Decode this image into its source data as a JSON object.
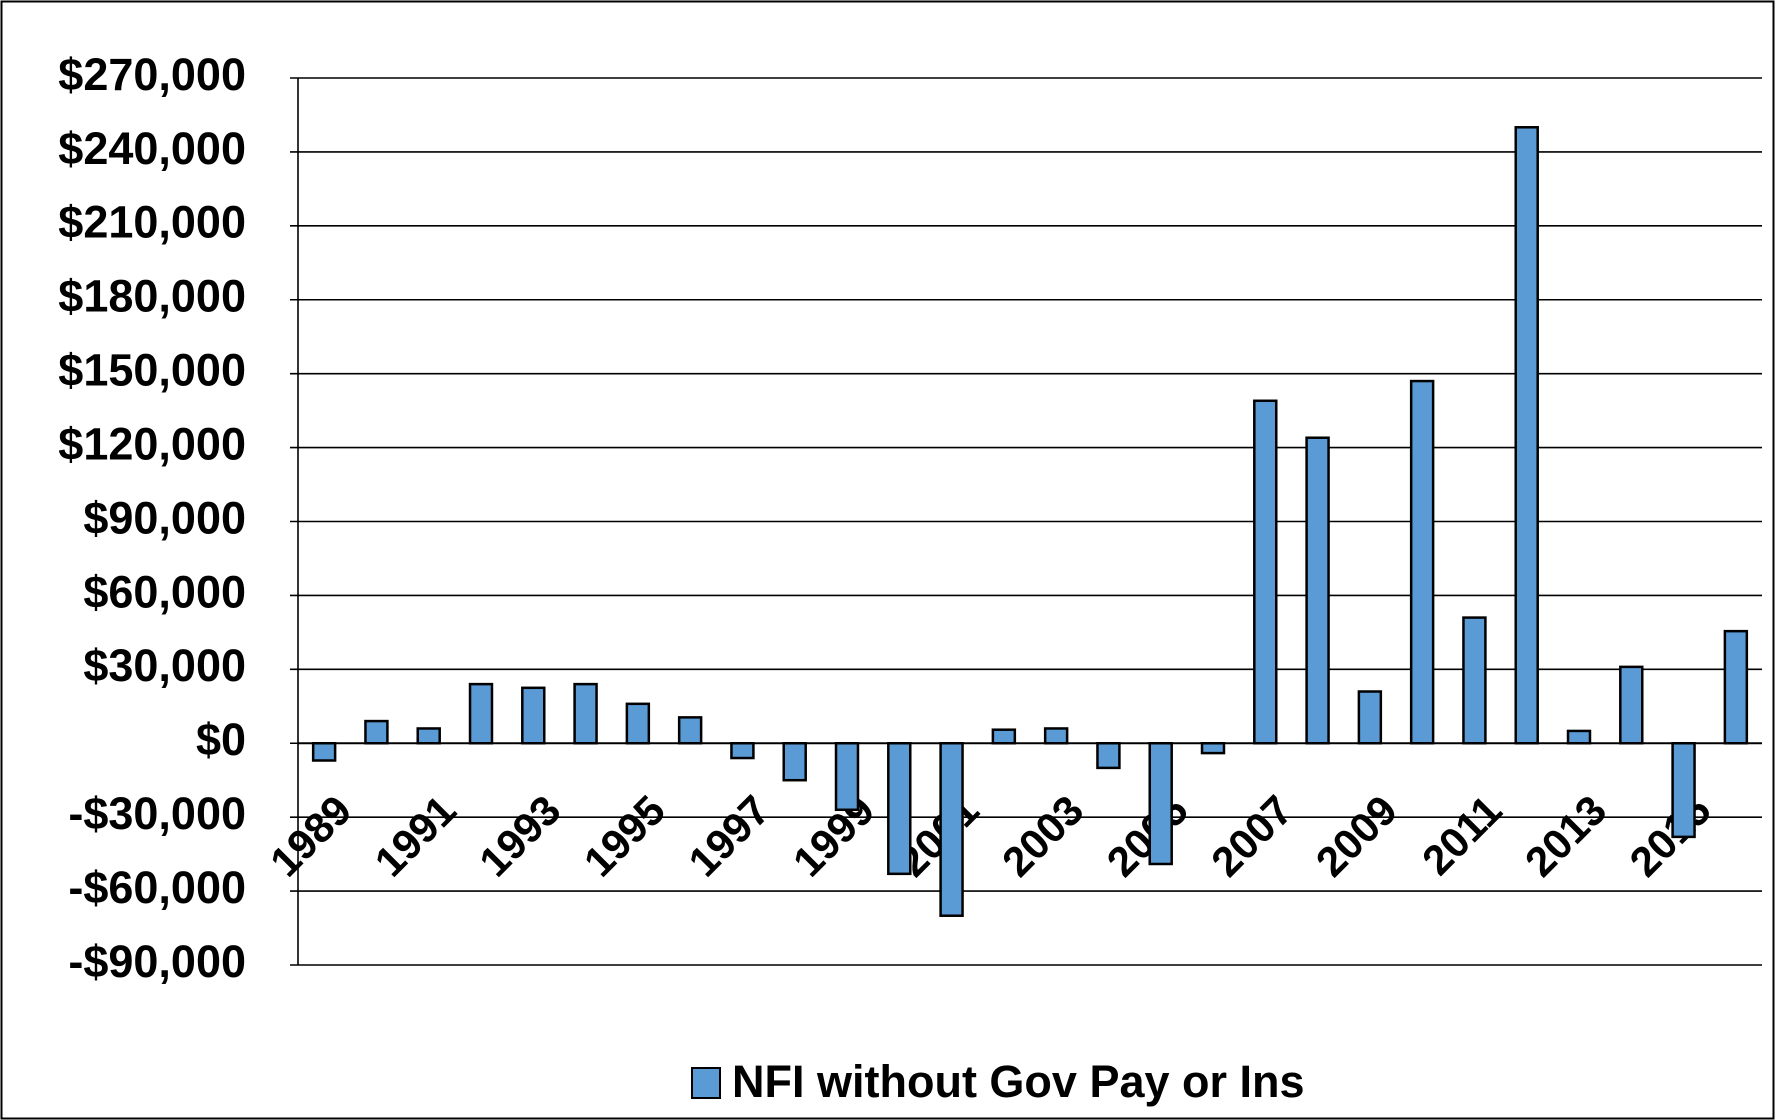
{
  "chart_data": {
    "type": "bar",
    "categories": [
      "1989",
      null,
      "1991",
      null,
      "1993",
      null,
      "1995",
      null,
      "1997",
      null,
      "1999",
      null,
      "2001",
      null,
      "2003",
      null,
      "2005",
      null,
      "2007",
      null,
      "2009",
      null,
      "2011",
      null,
      "2013",
      null,
      "2015",
      null
    ],
    "series": [
      {
        "name": "NFI without Gov Pay or Ins",
        "color": "#5b9bd5",
        "values": [
          -7000,
          9000,
          6000,
          24000,
          22500,
          24000,
          16000,
          10500,
          -6000,
          -15000,
          -27000,
          -53000,
          -70000,
          5500,
          6000,
          -10000,
          -49000,
          -4000,
          139000,
          124000,
          21000,
          147000,
          51000,
          250000,
          5000,
          31000,
          -38000,
          45500
        ]
      }
    ],
    "ylim": [
      -90000,
      270000
    ],
    "yticks": [
      {
        "value": -90000,
        "label": "-$90,000"
      },
      {
        "value": -60000,
        "label": "-$60,000"
      },
      {
        "value": -30000,
        "label": "-$30,000"
      },
      {
        "value": 0,
        "label": "$0"
      },
      {
        "value": 30000,
        "label": "$30,000"
      },
      {
        "value": 60000,
        "label": "$60,000"
      },
      {
        "value": 90000,
        "label": "$90,000"
      },
      {
        "value": 120000,
        "label": "$120,000"
      },
      {
        "value": 150000,
        "label": "$150,000"
      },
      {
        "value": 180000,
        "label": "$180,000"
      },
      {
        "value": 210000,
        "label": "$210,000"
      },
      {
        "value": 240000,
        "label": "$240,000"
      },
      {
        "value": 270000,
        "label": "$270,000"
      }
    ],
    "grid": true,
    "legend": "bottom"
  }
}
